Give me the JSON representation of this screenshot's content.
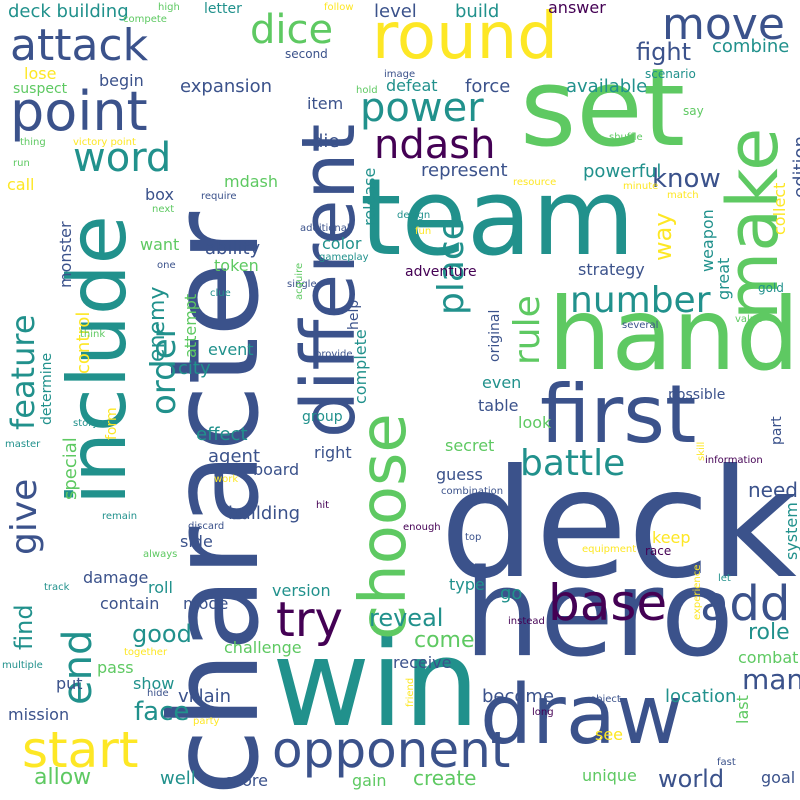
{
  "background": "#ffffff",
  "palette": [
    "#440154",
    "#3b528b",
    "#21918c",
    "#5ec962",
    "#fde725"
  ],
  "words": {
    "character": "character",
    "deck": "deck",
    "team": "team",
    "win": "win",
    "hero": "hero",
    "hand": "hand",
    "set": "set",
    "include": "include",
    "different": "different",
    "make": "make",
    "round": "round",
    "first": "first",
    "draw": "draw",
    "choose": "choose",
    "point": "point",
    "attack": "attack",
    "dice": "dice",
    "move": "move",
    "word": "word",
    "power": "power",
    "ndash": "ndash",
    "start": "start",
    "opponent": "opponent",
    "base": "base",
    "try": "try",
    "add": "add",
    "battle": "battle",
    "number": "number",
    "place": "place",
    "rule": "rule",
    "end": "end",
    "give": "give",
    "feature": "feature",
    "order": "order",
    "know": "know",
    "way": "way",
    "fight": "fight",
    "combine": "combine",
    "build": "build",
    "answer": "answer",
    "level": "level",
    "deck_building": "deck building",
    "expansion": "expansion",
    "begin": "begin",
    "available": "available",
    "defeat": "defeat",
    "force": "force",
    "item": "item",
    "lose": "lose",
    "suspect": "suspect",
    "die": "die",
    "represent": "represent",
    "powerful": "powerful",
    "mdash": "mdash",
    "box": "box",
    "call": "call",
    "edition": "edition",
    "collect": "collect",
    "weapon": "weapon",
    "great": "great",
    "want": "want",
    "ability": "ability",
    "token": "token",
    "color": "color",
    "release": "release",
    "strategy": "strategy",
    "monster": "monster",
    "enemy": "enemy",
    "attempt": "attempt",
    "control": "control",
    "special": "special",
    "find": "find",
    "effect": "effect",
    "agent": "agent",
    "building": "building",
    "board": "board",
    "city": "city",
    "event": "event",
    "even": "even",
    "look": "look",
    "table": "table",
    "secret": "secret",
    "guess": "guess",
    "need": "need",
    "right": "right",
    "complete": "complete",
    "help": "help",
    "original": "original",
    "possible": "possible",
    "part": "part",
    "system": "system",
    "keep": "keep",
    "go": "go",
    "type": "type",
    "reveal": "reveal",
    "come": "come",
    "role": "role",
    "good": "good",
    "contain": "contain",
    "mode": "mode",
    "version": "version",
    "damage": "damage",
    "side": "side",
    "roll": "roll",
    "challenge": "challenge",
    "pass": "pass",
    "show": "show",
    "put": "put",
    "villain": "villain",
    "face": "face",
    "mission": "mission",
    "allow": "allow",
    "well": "well",
    "score": "score",
    "gain": "gain",
    "create": "create",
    "unique": "unique",
    "goal": "goal",
    "world": "world",
    "location": "location",
    "become": "become",
    "receive": "receive",
    "combat": "combat",
    "many": "many",
    "see": "see",
    "last": "last",
    "form": "form",
    "determine": "determine",
    "group": "group",
    "adventure": "adventure",
    "design": "design",
    "fun": "fun",
    "additional": "additional",
    "gameplay": "gameplay",
    "gold": "gold",
    "value": "value",
    "several": "several",
    "require": "require",
    "next": "next",
    "minute": "minute",
    "match": "match",
    "resource": "resource",
    "shuffle": "shuffle",
    "say": "say",
    "scenario": "scenario",
    "image": "image",
    "second": "second",
    "hold": "hold",
    "letter": "letter",
    "high": "high",
    "follow": "follow",
    "compete": "compete",
    "thing": "thing",
    "victory_point": "victory point",
    "run": "run",
    "one": "one",
    "clue": "clue",
    "single": "single",
    "acquire": "acquire",
    "think": "think",
    "provide": "provide",
    "story": "story",
    "master": "master",
    "work": "work",
    "remain": "remain",
    "always": "always",
    "discard": "discard",
    "hit": "hit",
    "enough": "enough",
    "top": "top",
    "combination": "combination",
    "information": "information",
    "skill": "skill",
    "equipment": "equipment",
    "race": "race",
    "experience": "experience",
    "let": "let",
    "track": "track",
    "together": "together",
    "multiple": "multiple",
    "hide": "hide",
    "friend": "friend",
    "party": "party",
    "object": "object",
    "long": "long",
    "instead": "instead",
    "fast": "fast"
  }
}
